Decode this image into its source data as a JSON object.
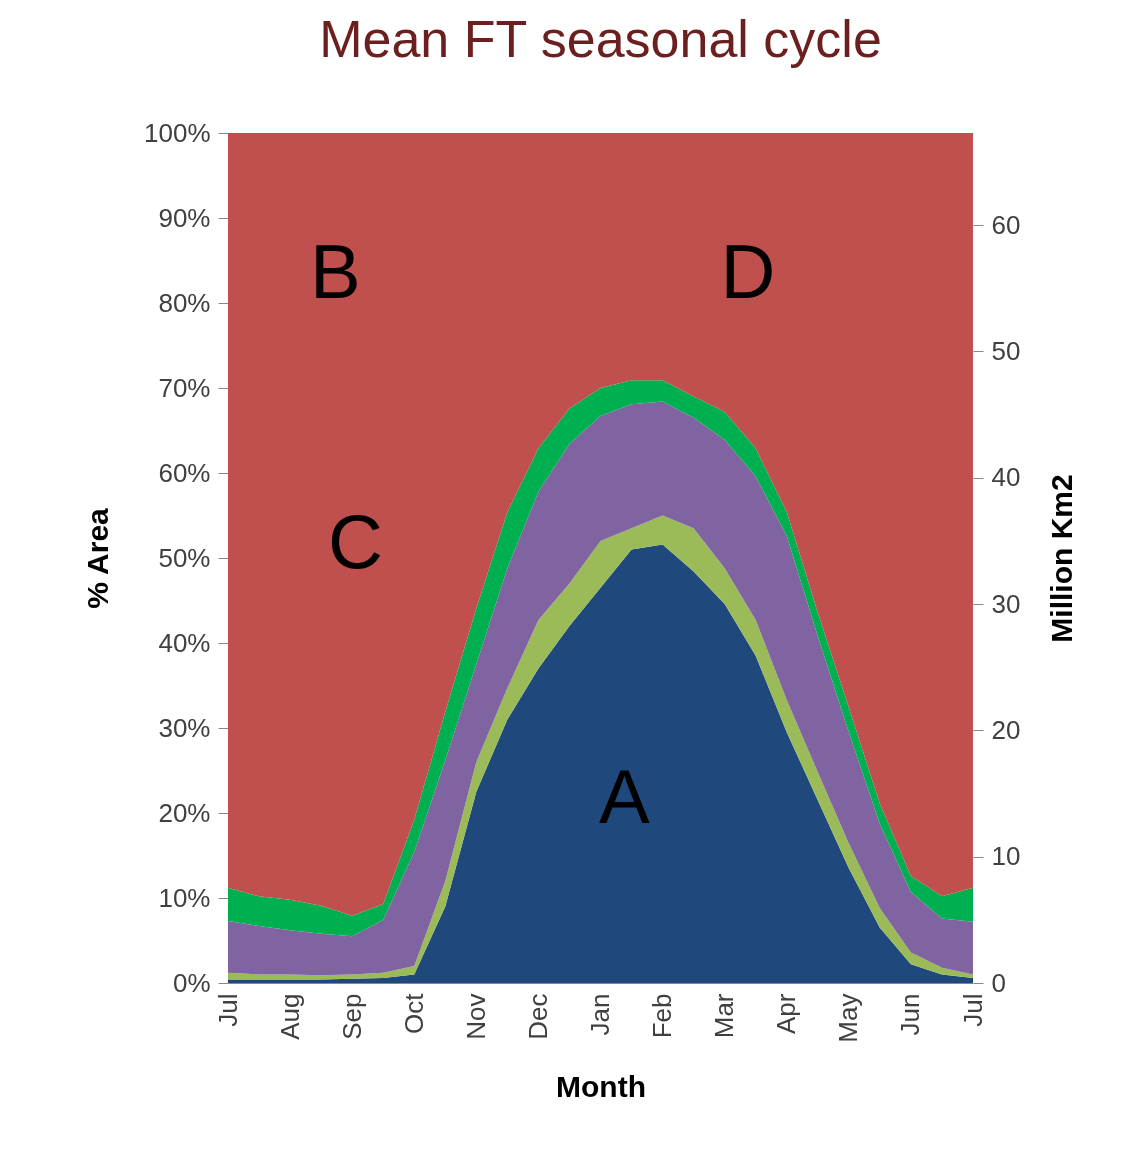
{
  "chart_data": {
    "type": "area",
    "title": "Mean FT seasonal cycle",
    "xlabel": "Month",
    "ylabel": "% Area",
    "y2label": "Million Km2",
    "stacked": true,
    "grid": false,
    "categories": [
      "Jul",
      null,
      "Aug",
      null,
      "Sep",
      null,
      "Oct",
      null,
      "Nov",
      null,
      "Dec",
      null,
      "Jan",
      null,
      "Feb",
      null,
      "Mar",
      null,
      "Apr",
      null,
      "May",
      null,
      "Jun",
      null,
      "Jul"
    ],
    "ylim": [
      0,
      100
    ],
    "yticks": [
      {
        "value": 0,
        "label": "0%"
      },
      {
        "value": 10,
        "label": "10%"
      },
      {
        "value": 20,
        "label": "20%"
      },
      {
        "value": 30,
        "label": "30%"
      },
      {
        "value": 40,
        "label": "40%"
      },
      {
        "value": 50,
        "label": "50%"
      },
      {
        "value": 60,
        "label": "60%"
      },
      {
        "value": 70,
        "label": "70%"
      },
      {
        "value": 80,
        "label": "80%"
      },
      {
        "value": 90,
        "label": "90%"
      },
      {
        "value": 100,
        "label": "100%"
      }
    ],
    "y2lim": [
      0,
      67.3
    ],
    "y2ticks": [
      0,
      10,
      20,
      30,
      40,
      50,
      60
    ],
    "series": [
      {
        "color": "#1f497d",
        "values": [
          0.4,
          0.4,
          0.4,
          0.4,
          0.5,
          0.6,
          1.0,
          9.0,
          22.5,
          31,
          37,
          42,
          46.5,
          51,
          51.6,
          48.4,
          44.6,
          38.5,
          29.5,
          21.5,
          13.5,
          6.5,
          2.2,
          1.0,
          0.6
        ]
      },
      {
        "color": "#9bbb59",
        "values": [
          0.8,
          0.6,
          0.6,
          0.5,
          0.5,
          0.6,
          1.0,
          3.0,
          3.5,
          3.7,
          5.7,
          5.0,
          5.5,
          2.5,
          3.4,
          5.1,
          4.2,
          4.2,
          3.8,
          3.3,
          2.9,
          2.3,
          1.4,
          0.8,
          0.4
        ]
      },
      {
        "color": "#8064a2",
        "values": [
          6.1,
          5.7,
          5.2,
          4.9,
          4.5,
          6.2,
          13.4,
          14.2,
          11.5,
          14.1,
          15.1,
          16.4,
          14.7,
          14.6,
          13.4,
          13,
          15.1,
          16.9,
          19.3,
          16,
          13.1,
          9.9,
          7.1,
          5.8,
          6.2
        ]
      },
      {
        "color": "#00b050",
        "values": [
          3.9,
          3.5,
          3.6,
          3.3,
          2.4,
          1.9,
          3.8,
          5.7,
          6.6,
          6.6,
          5.1,
          4.2,
          3.3,
          2.8,
          2.5,
          2.5,
          3.3,
          3.3,
          2.8,
          2.8,
          2.9,
          2.4,
          1.9,
          2.6,
          4.0
        ]
      },
      {
        "color": "#c0504d",
        "values": [
          88.8,
          89.8,
          90.2,
          90.9,
          92.1,
          90.7,
          80.8,
          68.1,
          55.9,
          44.6,
          37.1,
          32.4,
          30,
          29.1,
          29.1,
          31,
          32.8,
          37.1,
          44.6,
          56.4,
          67.6,
          78.9,
          87.4,
          89.8,
          88.8
        ]
      }
    ],
    "annotations": [
      "A",
      "B",
      "C",
      "D"
    ]
  }
}
